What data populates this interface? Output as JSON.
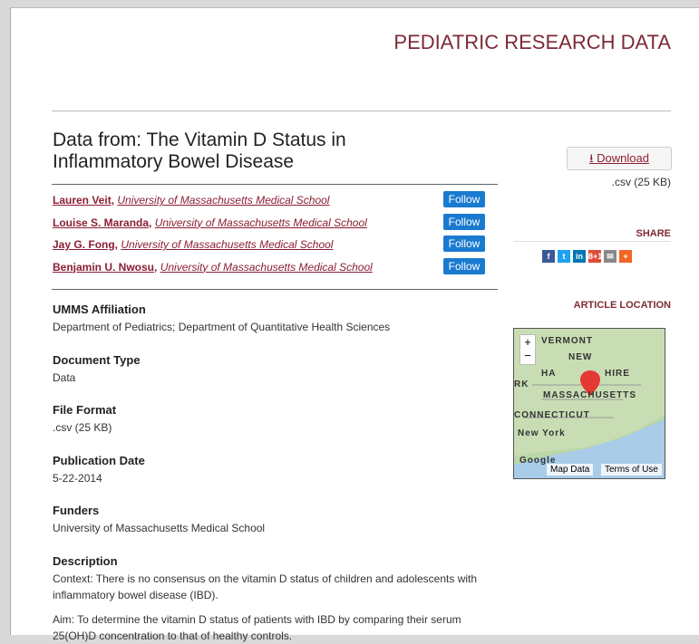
{
  "header": {
    "title": "PEDIATRIC RESEARCH DATA"
  },
  "article": {
    "title": "Data from: The Vitamin D Status in Inflammatory Bowel Disease",
    "authors": [
      {
        "name": "Lauren Veit,",
        "affiliation": "University of Massachusetts Medical School",
        "follow": "Follow"
      },
      {
        "name": "Louise S. Maranda,",
        "affiliation": "University of Massachusetts Medical School",
        "follow": "Follow"
      },
      {
        "name": "Jay G. Fong,",
        "affiliation": "University of Massachusetts Medical School",
        "follow": "Follow"
      },
      {
        "name": "Benjamin U. Nwosu,",
        "affiliation": "University of Massachusetts Medical School",
        "follow": "Follow"
      }
    ],
    "sections": [
      {
        "label": "UMMS Affiliation",
        "value": "Department of Pediatrics; Department of Quantitative Health Sciences"
      },
      {
        "label": "Document Type",
        "value": "Data"
      },
      {
        "label": "File Format",
        "value": ".csv (25 KB)"
      },
      {
        "label": "Publication Date",
        "value": "5-22-2014"
      },
      {
        "label": "Funders",
        "value": "University of Massachusetts Medical School"
      }
    ],
    "description": {
      "label": "Description",
      "paragraphs": [
        "Context: There is no consensus on the vitamin D status of children and adolescents with inflammatory bowel disease (IBD).",
        "Aim: To determine the vitamin D status of patients with IBD by comparing their serum 25(OH)D concentration to that of healthy controls."
      ]
    }
  },
  "sidebar": {
    "download": "⭳ Download",
    "file": ".csv (25 KB)",
    "share": "SHARE",
    "share_icons": [
      "f",
      "t",
      "in",
      "8+1",
      "✉",
      "+"
    ],
    "location": "ARTICLE LOCATION",
    "map": {
      "zoom_in": "+",
      "zoom_out": "−",
      "labels": [
        "VERMONT",
        "NEW",
        "HA",
        "HIRE",
        "RK",
        "MASSACHUSETTS",
        "CONNECTICUT",
        "New York",
        "Google"
      ],
      "map_data": "Map Data",
      "terms": "Terms of Use"
    }
  }
}
